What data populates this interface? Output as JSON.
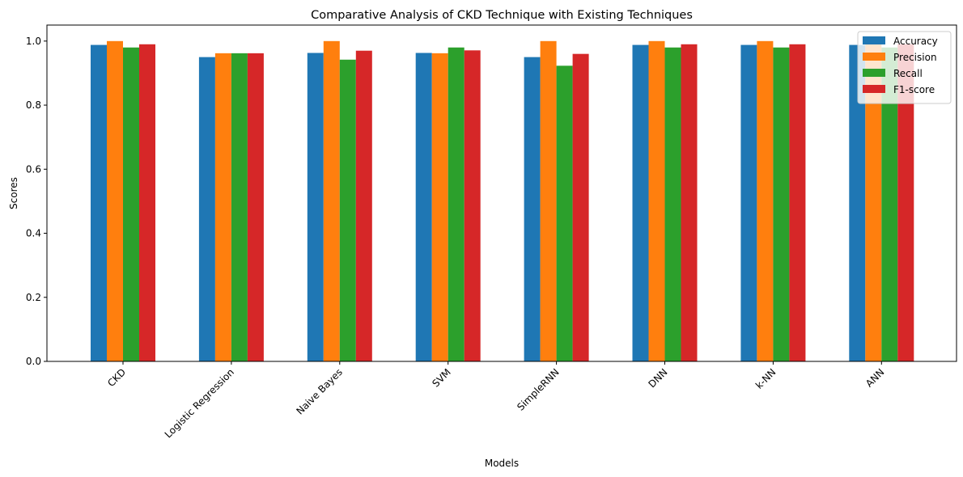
{
  "chart_data": {
    "type": "bar",
    "title": "Comparative Analysis of CKD Technique with Existing Techniques",
    "xlabel": "Models",
    "ylabel": "Scores",
    "ylim": [
      0,
      1.05
    ],
    "yticks": [
      0.0,
      0.2,
      0.4,
      0.6,
      0.8,
      1.0
    ],
    "ytick_labels": [
      "0.0",
      "0.2",
      "0.4",
      "0.6",
      "0.8",
      "1.0"
    ],
    "categories": [
      "CKD",
      "Logistic Regression",
      "Naive Bayes",
      "SVM",
      "SimpleRNN",
      "DNN",
      "k-NN",
      "ANN"
    ],
    "legend_position": "top-right",
    "grid": false,
    "series": [
      {
        "name": "Accuracy",
        "color": "#1f77b4",
        "values": [
          0.988,
          0.95,
          0.963,
          0.963,
          0.95,
          0.988,
          0.988,
          0.988
        ]
      },
      {
        "name": "Precision",
        "color": "#ff7f0e",
        "values": [
          1.0,
          0.962,
          1.0,
          0.962,
          1.0,
          1.0,
          1.0,
          1.0
        ]
      },
      {
        "name": "Recall",
        "color": "#2ca02c",
        "values": [
          0.98,
          0.962,
          0.942,
          0.98,
          0.923,
          0.98,
          0.98,
          0.98
        ]
      },
      {
        "name": "F1-score",
        "color": "#d62728",
        "values": [
          0.99,
          0.962,
          0.97,
          0.971,
          0.96,
          0.99,
          0.99,
          0.99
        ]
      }
    ]
  }
}
